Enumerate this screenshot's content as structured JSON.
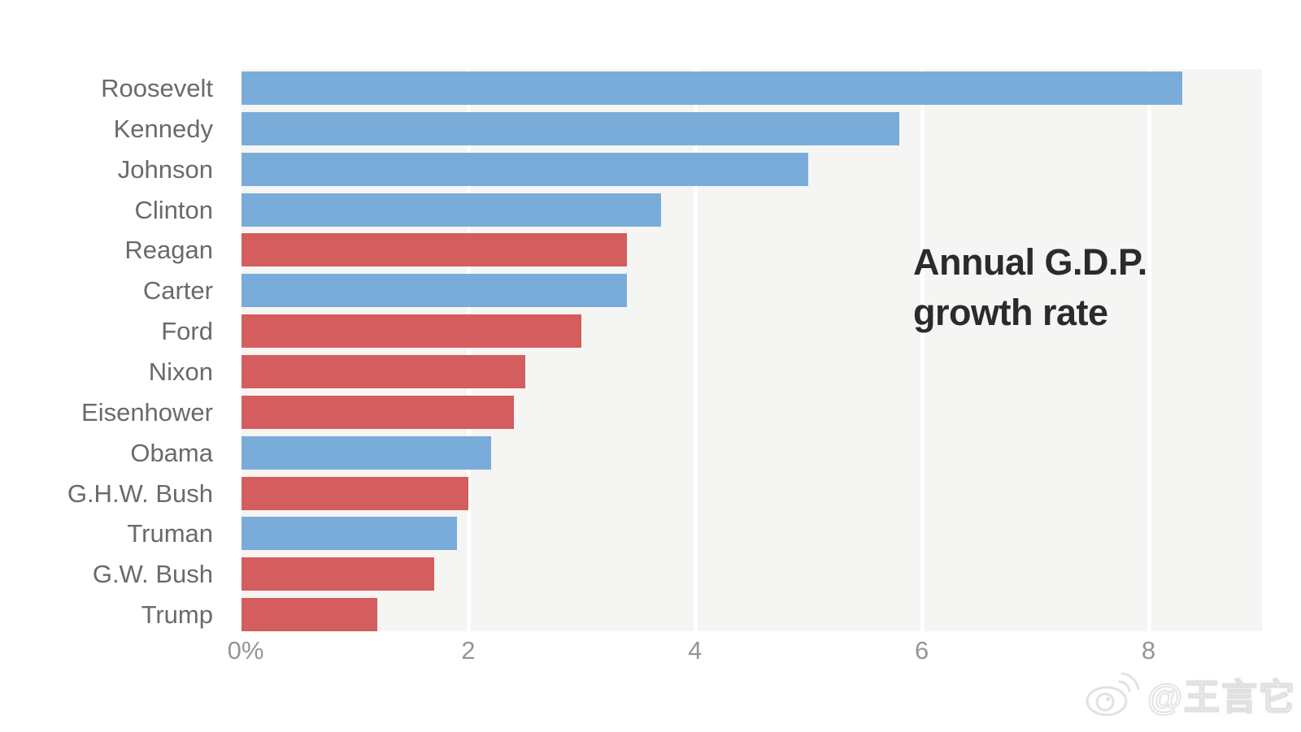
{
  "chart_data": {
    "type": "bar",
    "orientation": "horizontal",
    "title": "Annual G.D.P. growth rate",
    "title_lines": [
      "Annual G.D.P.",
      "growth rate"
    ],
    "categories": [
      "Roosevelt",
      "Kennedy",
      "Johnson",
      "Clinton",
      "Reagan",
      "Carter",
      "Ford",
      "Nixon",
      "Eisenhower",
      "Obama",
      "G.H.W. Bush",
      "Truman",
      "G.W. Bush",
      "Trump"
    ],
    "values": [
      8.3,
      5.8,
      5.0,
      3.7,
      3.4,
      3.4,
      3.0,
      2.5,
      2.4,
      2.2,
      2.0,
      1.9,
      1.7,
      1.2
    ],
    "parties": [
      "D",
      "D",
      "D",
      "D",
      "R",
      "D",
      "R",
      "R",
      "R",
      "D",
      "R",
      "D",
      "R",
      "R"
    ],
    "party_colors": {
      "D": "#7aacda",
      "R": "#d45d5d"
    },
    "x_axis": {
      "tick_labels": [
        "0%",
        "2",
        "4",
        "6",
        "8"
      ],
      "tick_values": [
        0,
        2,
        4,
        6,
        8
      ],
      "max": 9
    },
    "grid": true,
    "legend": false,
    "colors": {
      "plot_background": "#f5f5f3",
      "gridline": "#ffffff",
      "category_label": "#6a6a6a",
      "tick_label": "#959595",
      "title": "#2b2b2b"
    }
  },
  "watermark": {
    "text": "@王言它",
    "icon": "weibo-icon"
  }
}
